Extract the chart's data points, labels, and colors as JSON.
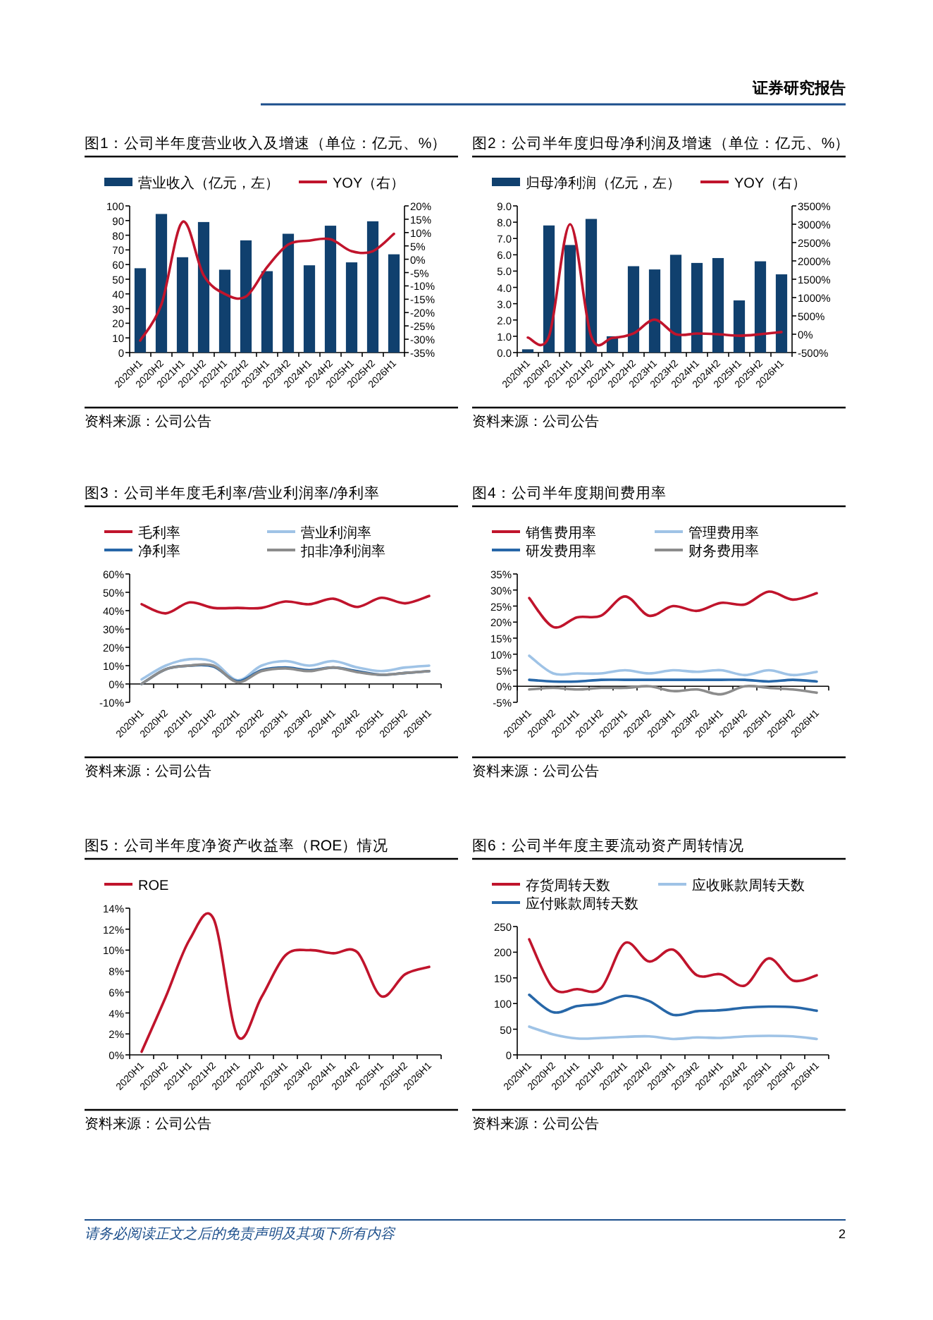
{
  "chart_data": [
    {
      "type": "bar",
      "title": "图1：公司半年度营业收入及增速（单位：亿元、%）",
      "categories": [
        "2020H1",
        "2020H2",
        "2021H1",
        "2021H2",
        "2022H1",
        "2022H2",
        "2023H1",
        "2023H2",
        "2024H1",
        "2024H2",
        "2025H1",
        "2025H2",
        "2026H1"
      ],
      "series": [
        {
          "name": "营业收入（亿元，左）",
          "color": "#10406e",
          "values": [
            57.5,
            94.5,
            65,
            89,
            56.5,
            76.5,
            55.5,
            81,
            59.5,
            86.5,
            61.5,
            89.5,
            67
          ]
        },
        {
          "name": "YOY（右）",
          "type": "line",
          "axis": "y2",
          "color": "#c0142c",
          "values": [
            -30.5,
            -17,
            14,
            -6,
            -13,
            -14,
            -3,
            5.5,
            7,
            7.5,
            3,
            3,
            9.5
          ]
        }
      ],
      "ylim": [
        0,
        100
      ],
      "yticks": [
        0,
        10,
        20,
        30,
        40,
        50,
        60,
        70,
        80,
        90,
        100
      ],
      "y2lim": [
        -35,
        20
      ],
      "y2ticks": [
        {
          "value": -35,
          "label": "-35%"
        },
        {
          "value": -30,
          "label": "-30%"
        },
        {
          "value": -25,
          "label": "-25%"
        },
        {
          "value": -20,
          "label": "-20%"
        },
        {
          "value": -15,
          "label": "-15%"
        },
        {
          "value": -10,
          "label": "-10%"
        },
        {
          "value": -5,
          "label": "-5%"
        },
        {
          "value": 0,
          "label": "0%"
        },
        {
          "value": 5,
          "label": "5%"
        },
        {
          "value": 10,
          "label": "10%"
        },
        {
          "value": 15,
          "label": "15%"
        },
        {
          "value": 20,
          "label": "20%"
        }
      ],
      "legend": "top",
      "annotations": [
        "资料来源：公司公告"
      ]
    },
    {
      "type": "bar",
      "title": "图2：公司半年度归母净利润及增速（单位：亿元、%）",
      "categories": [
        "2020H1",
        "2020H2",
        "2021H1",
        "2021H2",
        "2022H1",
        "2022H2",
        "2023H1",
        "2023H2",
        "2024H1",
        "2024H2",
        "2025H1",
        "2025H2",
        "2026H1"
      ],
      "series": [
        {
          "name": "归母净利润（亿元，左）",
          "color": "#10406e",
          "values": [
            0.2,
            7.8,
            6.6,
            8.2,
            1.0,
            5.3,
            5.1,
            6.0,
            5.5,
            5.8,
            3.2,
            5.6,
            4.8
          ]
        },
        {
          "name": "YOY（右）",
          "type": "line",
          "axis": "y2",
          "color": "#c0142c",
          "values": [
            -90,
            -60,
            3000,
            -60,
            -100,
            20,
            400,
            0,
            20,
            0,
            -40,
            0,
            60
          ]
        }
      ],
      "ylim": [
        0,
        9
      ],
      "yticks": [
        {
          "value": 0,
          "label": "0.0"
        },
        {
          "value": 1,
          "label": "1.0"
        },
        {
          "value": 2,
          "label": "2.0"
        },
        {
          "value": 3,
          "label": "3.0"
        },
        {
          "value": 4,
          "label": "4.0"
        },
        {
          "value": 5,
          "label": "5.0"
        },
        {
          "value": 6,
          "label": "6.0"
        },
        {
          "value": 7,
          "label": "7.0"
        },
        {
          "value": 8,
          "label": "8.0"
        },
        {
          "value": 9,
          "label": "9.0"
        }
      ],
      "y2lim": [
        -500,
        3500
      ],
      "y2ticks": [
        {
          "value": -500,
          "label": "-500%"
        },
        {
          "value": 0,
          "label": "0%"
        },
        {
          "value": 500,
          "label": "500%"
        },
        {
          "value": 1000,
          "label": "1000%"
        },
        {
          "value": 1500,
          "label": "1500%"
        },
        {
          "value": 2000,
          "label": "2000%"
        },
        {
          "value": 2500,
          "label": "2500%"
        },
        {
          "value": 3000,
          "label": "3000%"
        },
        {
          "value": 3500,
          "label": "3500%"
        }
      ],
      "legend": "top",
      "annotations": [
        "资料来源：公司公告"
      ]
    },
    {
      "type": "line",
      "title": "图3：公司半年度毛利率/营业利润率/净利率",
      "categories": [
        "2020H1",
        "2020H2",
        "2021H1",
        "2021H2",
        "2022H1",
        "2022H2",
        "2023H1",
        "2023H2",
        "2024H1",
        "2024H2",
        "2025H1",
        "2025H2",
        "2026H1"
      ],
      "series": [
        {
          "name": "毛利率",
          "color": "#c0142c",
          "values": [
            43.5,
            38.5,
            44.5,
            41.5,
            41.5,
            41.5,
            45,
            43.5,
            46.5,
            42,
            47,
            44,
            48
          ]
        },
        {
          "name": "营业利润率",
          "color": "#9fc3e6",
          "values": [
            2.5,
            10,
            13.5,
            12,
            2,
            10,
            12.5,
            10,
            12.5,
            9,
            7,
            9,
            10
          ]
        },
        {
          "name": "净利率",
          "color": "#2767a8",
          "values": [
            0,
            8,
            10,
            9.5,
            1.5,
            7.5,
            9,
            7.5,
            9,
            7,
            5,
            6,
            7
          ]
        },
        {
          "name": "扣非净利润率",
          "color": "#8c8c8c",
          "values": [
            0,
            8,
            10,
            10,
            1,
            7,
            8.5,
            7,
            9,
            6.5,
            5,
            6,
            7
          ]
        }
      ],
      "ylim": [
        -10,
        60
      ],
      "yticks": [
        {
          "value": -10,
          "label": "-10%"
        },
        {
          "value": 0,
          "label": "0%"
        },
        {
          "value": 10,
          "label": "10%"
        },
        {
          "value": 20,
          "label": "20%"
        },
        {
          "value": 30,
          "label": "30%"
        },
        {
          "value": 40,
          "label": "40%"
        },
        {
          "value": 50,
          "label": "50%"
        },
        {
          "value": 60,
          "label": "60%"
        }
      ],
      "legend": "top",
      "annotations": [
        "资料来源：公司公告"
      ]
    },
    {
      "type": "line",
      "title": "图4：公司半年度期间费用率",
      "categories": [
        "2020H1",
        "2020H2",
        "2021H1",
        "2021H2",
        "2022H1",
        "2022H2",
        "2023H1",
        "2023H2",
        "2024H1",
        "2024H2",
        "2025H1",
        "2025H2",
        "2026H1"
      ],
      "series": [
        {
          "name": "销售费用率",
          "color": "#c0142c",
          "values": [
            27.5,
            18.5,
            21.5,
            22,
            28,
            22,
            25,
            23.5,
            26,
            25.5,
            29.5,
            27,
            29
          ]
        },
        {
          "name": "管理费用率",
          "color": "#9fc3e6",
          "values": [
            9.5,
            4,
            4,
            4,
            5,
            4,
            5,
            4.5,
            5,
            3.5,
            5,
            3.5,
            4.5
          ]
        },
        {
          "name": "研发费用率",
          "color": "#2767a8",
          "values": [
            2,
            1.5,
            1.5,
            2,
            2,
            2,
            2,
            2,
            2,
            2,
            1.5,
            2,
            1.5
          ]
        },
        {
          "name": "财务费用率",
          "color": "#8c8c8c",
          "values": [
            -1,
            -0.5,
            -1,
            -0.5,
            -0.5,
            0,
            -1.5,
            -1,
            -2.5,
            0,
            -0.5,
            -1,
            -2
          ]
        }
      ],
      "ylim": [
        -5,
        35
      ],
      "yticks": [
        {
          "value": -5,
          "label": "-5%"
        },
        {
          "value": 0,
          "label": "0%"
        },
        {
          "value": 5,
          "label": "5%"
        },
        {
          "value": 10,
          "label": "10%"
        },
        {
          "value": 15,
          "label": "15%"
        },
        {
          "value": 20,
          "label": "20%"
        },
        {
          "value": 25,
          "label": "25%"
        },
        {
          "value": 30,
          "label": "30%"
        },
        {
          "value": 35,
          "label": "35%"
        }
      ],
      "legend": "top",
      "annotations": [
        "资料来源：公司公告"
      ]
    },
    {
      "type": "line",
      "title": "图5：公司半年度净资产收益率（ROE）情况",
      "categories": [
        "2020H1",
        "2020H2",
        "2021H1",
        "2021H2",
        "2022H1",
        "2022H2",
        "2023H1",
        "2023H2",
        "2024H1",
        "2024H2",
        "2025H1",
        "2025H2",
        "2026H1"
      ],
      "series": [
        {
          "name": "ROE",
          "color": "#c0142c",
          "values": [
            0.3,
            5.5,
            11,
            13,
            1.8,
            5.5,
            9.5,
            10,
            9.7,
            9.8,
            5.6,
            7.7,
            8.4
          ]
        }
      ],
      "ylim": [
        0,
        14
      ],
      "yticks": [
        {
          "value": 0,
          "label": "0%"
        },
        {
          "value": 2,
          "label": "2%"
        },
        {
          "value": 4,
          "label": "4%"
        },
        {
          "value": 6,
          "label": "6%"
        },
        {
          "value": 8,
          "label": "8%"
        },
        {
          "value": 10,
          "label": "10%"
        },
        {
          "value": 12,
          "label": "12%"
        },
        {
          "value": 14,
          "label": "14%"
        }
      ],
      "legend": "top",
      "annotations": [
        "资料来源：公司公告"
      ]
    },
    {
      "type": "line",
      "title": "图6：公司半年度主要流动资产周转情况",
      "categories": [
        "2020H1",
        "2020H2",
        "2021H1",
        "2021H2",
        "2022H1",
        "2022H2",
        "2023H1",
        "2023H2",
        "2024H1",
        "2024H2",
        "2025H1",
        "2025H2",
        "2026H1"
      ],
      "series": [
        {
          "name": "存货周转天数",
          "color": "#c0142c",
          "values": [
            225,
            130,
            128,
            130,
            218,
            182,
            205,
            155,
            157,
            135,
            188,
            145,
            155
          ]
        },
        {
          "name": "应收账款周转天数",
          "color": "#9fc3e6",
          "values": [
            55,
            40,
            32,
            33,
            35,
            36,
            31,
            34,
            33,
            36,
            37,
            36,
            31
          ]
        },
        {
          "name": "应付账款周转天数",
          "color": "#2767a8",
          "values": [
            117,
            83,
            95,
            100,
            115,
            105,
            78,
            85,
            87,
            92,
            94,
            93,
            86
          ]
        }
      ],
      "ylim": [
        0,
        250
      ],
      "yticks": [
        0,
        50,
        100,
        150,
        200,
        250
      ],
      "legend": "top",
      "annotations": [
        "资料来源：公司公告"
      ]
    },
    {
      "type": "other",
      "annotations": [
        "证券研究报告",
        "请务必阅读正文之后的免责声明及其项下所有内容",
        "2"
      ]
    }
  ]
}
